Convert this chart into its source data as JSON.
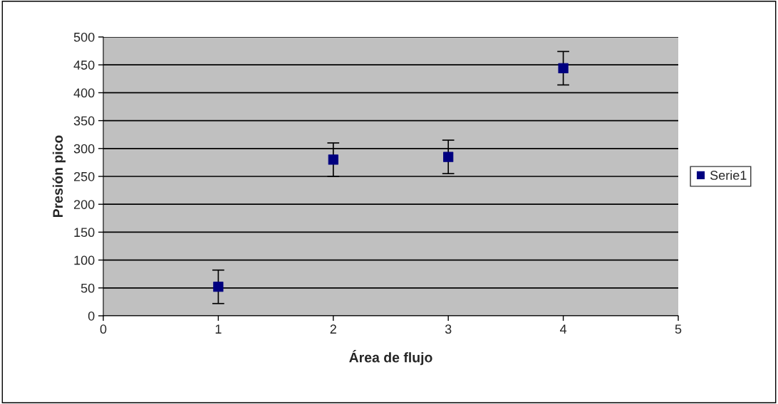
{
  "chart_data": {
    "type": "scatter",
    "xlabel": "Área de flujo",
    "ylabel": "Presión pico",
    "x": [
      1,
      2,
      3,
      4
    ],
    "series": [
      {
        "name": "Serie1",
        "color": "#000080",
        "values": [
          52,
          280,
          285,
          444
        ],
        "errors": [
          30,
          30,
          30,
          30
        ]
      }
    ],
    "xlim": [
      0,
      5
    ],
    "xticks": [
      0,
      1,
      2,
      3,
      4,
      5
    ],
    "ylim": [
      0,
      500
    ],
    "yticks": [
      0,
      50,
      100,
      150,
      200,
      250,
      300,
      350,
      400,
      450,
      500
    ],
    "grid": "y",
    "legend": "right",
    "marker": "square"
  }
}
